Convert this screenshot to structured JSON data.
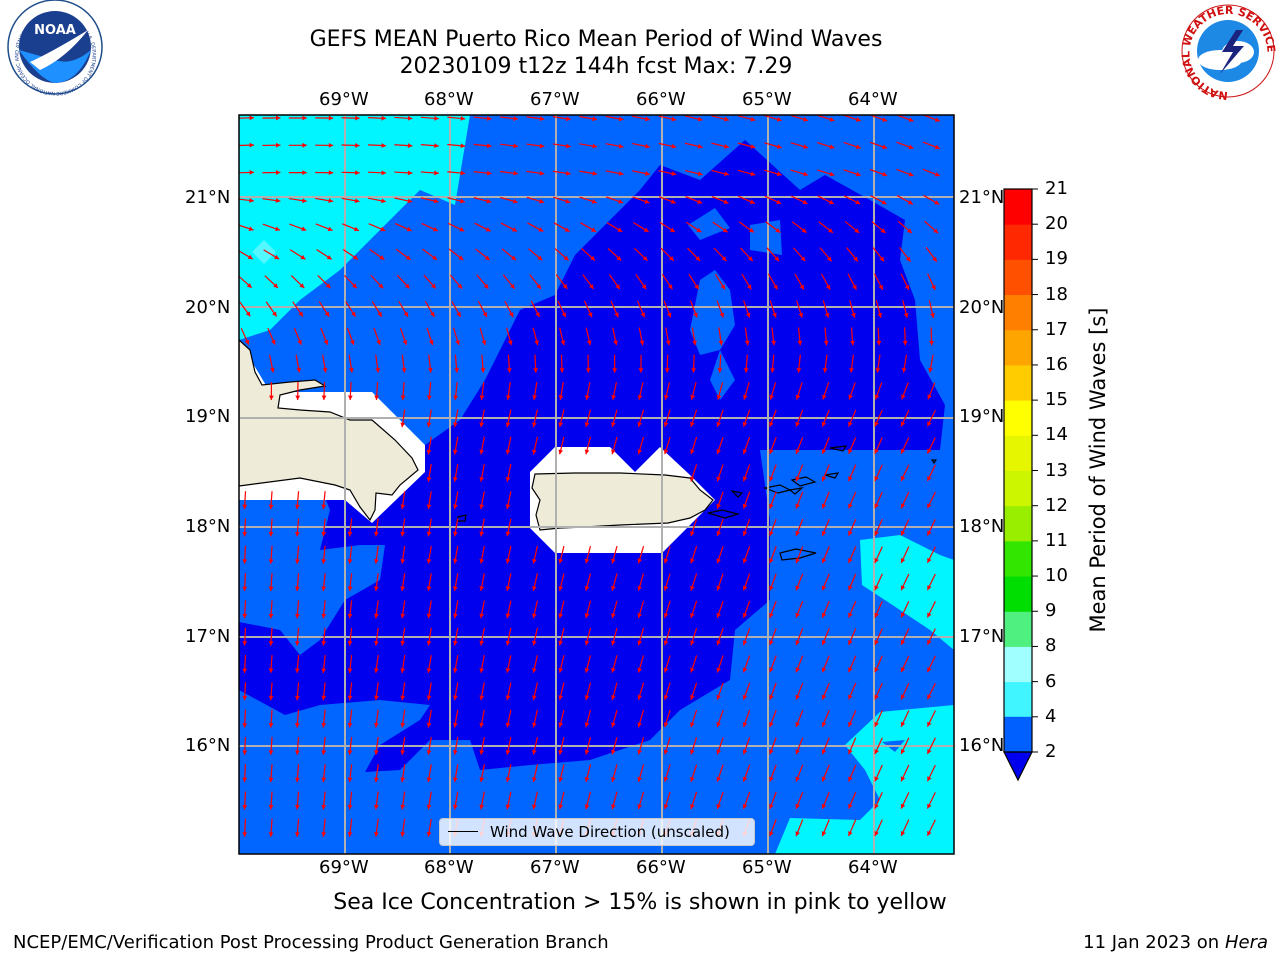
{
  "header": {
    "title_line1": "GEFS MEAN Puerto Rico Mean Period of Wind Waves",
    "title_line2": "20230109 t12z 144h fcst   Max: 7.29"
  },
  "map": {
    "lon_ticks": [
      "69°W",
      "68°W",
      "67°W",
      "66°W",
      "65°W",
      "64°W"
    ],
    "lat_ticks": [
      "21°N",
      "20°N",
      "19°N",
      "18°N",
      "17°N",
      "16°N"
    ],
    "legend_label": "Wind Wave Direction (unscaled)",
    "arrow_color": "#ff0000",
    "land_color": "#efebd9",
    "contour_colors": {
      "2-4": "#0066ff",
      "0-2": "#0000ee",
      "4-6": "#00f5ff"
    }
  },
  "colorbar": {
    "title": "Mean Period of Wind Waves [s]",
    "ticks": [
      "2",
      "4",
      "6",
      "8",
      "9",
      "10",
      "11",
      "12",
      "13",
      "14",
      "15",
      "16",
      "17",
      "18",
      "19",
      "20",
      "21"
    ],
    "colors": [
      "#0060ff",
      "#00e6ff",
      "#40f5ff",
      "#a0ffff",
      "#50f080",
      "#00dd00",
      "#33e600",
      "#99ee00",
      "#ccf500",
      "#e6f500",
      "#ffff00",
      "#ffcc00",
      "#ffa500",
      "#ff8000",
      "#ff5000",
      "#ff2800",
      "#ff0000"
    ]
  },
  "footer": {
    "subtitle": "Sea Ice Concentration > 15% is shown in pink to yellow",
    "left": "NCEP/EMC/Verification Post Processing Product Generation Branch",
    "right_date": "11 Jan 2023 on ",
    "right_host": "Hera"
  },
  "logos": {
    "noaa_text": "NOAA",
    "noaa_ring": "NATIONAL OCEANIC AND ATMOSPHERIC ADMINISTRATION · U.S. DEPARTMENT OF COMMERCE",
    "nws_ring": "NATIONAL WEATHER SERVICE"
  }
}
